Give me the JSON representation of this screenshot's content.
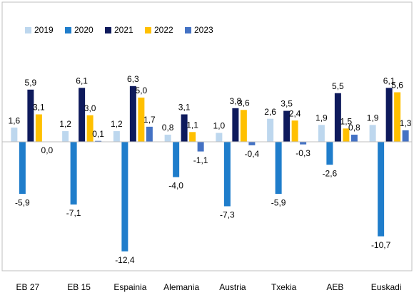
{
  "chart_data": {
    "type": "bar",
    "categories": [
      "EB 27",
      "EB 15",
      "Espainia",
      "Alemania",
      "Austria",
      "Txekia",
      "AEB",
      "Euskadi"
    ],
    "series": [
      {
        "name": "2019",
        "color": "#bdd7ee",
        "values": [
          1.6,
          1.2,
          1.2,
          0.8,
          1.0,
          2.6,
          1.9,
          1.9
        ],
        "value_labels": [
          "1,6",
          "1,2",
          "1,2",
          "0,8",
          "1,0",
          "2,6",
          "1,9",
          "1,9"
        ]
      },
      {
        "name": "2020",
        "color": "#1f7dcb",
        "values": [
          -5.9,
          -7.1,
          -12.4,
          -4.0,
          -7.3,
          -5.9,
          -2.6,
          -10.7
        ],
        "value_labels": [
          "-5,9",
          "-7,1",
          "-12,4",
          "-4,0",
          "-7,3",
          "-5,9",
          "-2,6",
          "-10,7"
        ]
      },
      {
        "name": "2021",
        "color": "#0e1a5c",
        "values": [
          5.9,
          6.1,
          6.3,
          3.1,
          3.8,
          3.5,
          5.5,
          6.1
        ],
        "value_labels": [
          "5,9",
          "6,1",
          "6,3",
          "3,1",
          "3,8",
          "3,5",
          "5,5",
          "6,1"
        ]
      },
      {
        "name": "2022",
        "color": "#ffc000",
        "values": [
          3.1,
          3.0,
          5.0,
          1.1,
          3.6,
          2.4,
          1.5,
          5.6
        ],
        "value_labels": [
          "3,1",
          "3,0",
          "5,0",
          "1,1",
          "3,6",
          "2,4",
          "1,5",
          "5,6"
        ]
      },
      {
        "name": "2023",
        "color": "#4472c4",
        "values": [
          0.0,
          0.1,
          1.7,
          -1.1,
          -0.4,
          -0.3,
          0.8,
          1.3
        ],
        "value_labels": [
          "0,0",
          "0,1",
          "1,7",
          "-1,1",
          "-0,4",
          "-0,3",
          "0,8",
          "1,3"
        ]
      }
    ],
    "ylim": [
      -14.6,
      15.8
    ],
    "legend": "top-left"
  }
}
